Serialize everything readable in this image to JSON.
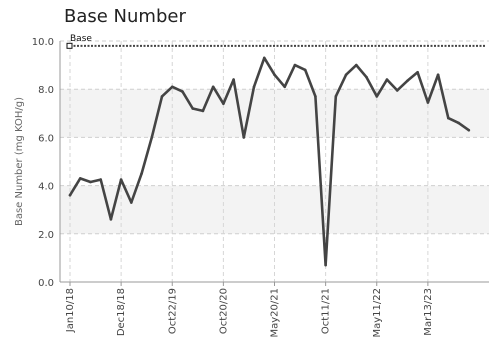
{
  "chart_data": {
    "type": "line",
    "title": "Base Number",
    "xlabel": "",
    "ylabel": "Base Number (mg KOH/g)",
    "ylim": [
      0,
      10
    ],
    "yticks": [
      0,
      2,
      4,
      6,
      8,
      10
    ],
    "ytick_labels": [
      "0.0",
      "2.0",
      "4.0",
      "6.0",
      "8.0",
      "10.0"
    ],
    "xtick_labels": [
      "Jan10/18",
      "Dec18/18",
      "Oct22/19",
      "Oct20/20",
      "May20/21",
      "Oct11/21",
      "May11/22",
      "Mar13/23"
    ],
    "xtick_positions": [
      1,
      6,
      11,
      16,
      21,
      26,
      31,
      36
    ],
    "x_count": 41,
    "grid": true,
    "shaded_bands": [
      [
        2,
        4
      ],
      [
        6,
        8
      ]
    ],
    "series": [
      {
        "name": "",
        "color": "#444444",
        "values": [
          3.6,
          4.3,
          4.15,
          4.25,
          2.6,
          4.25,
          3.3,
          4.5,
          6.0,
          7.7,
          8.1,
          7.9,
          7.2,
          7.1,
          8.1,
          7.4,
          8.4,
          6.0,
          8.1,
          9.3,
          8.6,
          8.1,
          9.0,
          8.8,
          7.7,
          0.7,
          7.7,
          8.6,
          9.0,
          8.5,
          7.7,
          8.4,
          7.95,
          8.35,
          8.7,
          7.45,
          8.6,
          6.8,
          6.6,
          6.3
        ]
      }
    ],
    "reference_line": {
      "label": "Base",
      "value": 9.8,
      "color": "#444444"
    }
  }
}
